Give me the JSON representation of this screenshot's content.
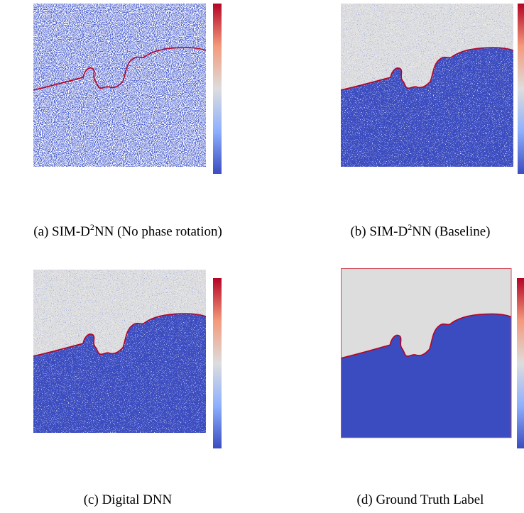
{
  "figure": {
    "panels": [
      {
        "caption": [
          "(a) SIM-D",
          "2",
          "NN (No phase rotation)"
        ]
      },
      {
        "caption": [
          "(b) SIM-D",
          "2",
          "NN (Baseline)"
        ]
      },
      {
        "caption": [
          "(c) Digital DNN"
        ]
      },
      {
        "caption": [
          "(d) Ground Truth Label"
        ]
      }
    ]
  }
}
